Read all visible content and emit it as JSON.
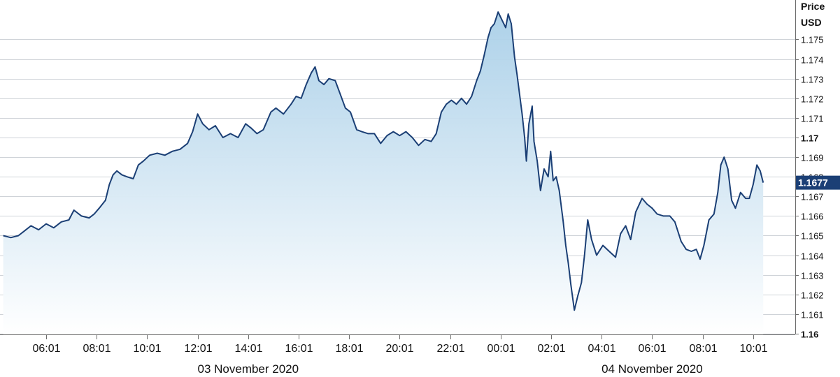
{
  "chart_data": {
    "type": "area",
    "ylabel_line1": "Price",
    "ylabel_line2": "USD",
    "ylim": [
      1.16,
      1.1765
    ],
    "yticks": [
      1.16,
      1.161,
      1.162,
      1.163,
      1.164,
      1.165,
      1.166,
      1.167,
      1.168,
      1.169,
      1.17,
      1.171,
      1.172,
      1.173,
      1.174,
      1.175
    ],
    "ytick_labels": [
      "1.16",
      "1.161",
      "1.162",
      "1.163",
      "1.164",
      "1.165",
      "1.166",
      "1.167",
      "1.168",
      "1.169",
      "1.17",
      "1.171",
      "1.172",
      "1.173",
      "1.174",
      "1.175"
    ],
    "ytick_major": [
      "1.16",
      "1.17"
    ],
    "xticks": [
      "06:01",
      "08:01",
      "10:01",
      "12:01",
      "14:01",
      "16:01",
      "18:01",
      "20:01",
      "22:01",
      "00:01",
      "02:01",
      "04:01",
      "06:01",
      "08:01",
      "10:01"
    ],
    "xtick_hours": [
      6,
      8,
      10,
      12,
      14,
      16,
      18,
      20,
      22,
      24,
      26,
      28,
      30,
      32,
      34
    ],
    "dates": [
      {
        "label": "03 November 2020",
        "center_hour": 14
      },
      {
        "label": "04 November 2020",
        "center_hour": 30
      }
    ],
    "last_price_label": "1.1677",
    "last_price": 1.1677,
    "grid": true,
    "colors": {
      "line": "#1b3f75",
      "fill_top": "#a9cfe8",
      "fill_bottom": "#ffffff",
      "grid": "#cfd3d8",
      "price_tag": "#1b3f75"
    },
    "series": [
      {
        "points": [
          [
            4.3,
            1.165
          ],
          [
            4.6,
            1.1649
          ],
          [
            4.9,
            1.165
          ],
          [
            5.1,
            1.1652
          ],
          [
            5.4,
            1.1655
          ],
          [
            5.7,
            1.1653
          ],
          [
            6.0,
            1.1656
          ],
          [
            6.3,
            1.1654
          ],
          [
            6.6,
            1.1657
          ],
          [
            6.9,
            1.1658
          ],
          [
            7.1,
            1.1663
          ],
          [
            7.4,
            1.166
          ],
          [
            7.7,
            1.1659
          ],
          [
            7.9,
            1.1661
          ],
          [
            8.1,
            1.1664
          ],
          [
            8.35,
            1.1668
          ],
          [
            8.5,
            1.1676
          ],
          [
            8.65,
            1.1681
          ],
          [
            8.8,
            1.1683
          ],
          [
            9.0,
            1.1681
          ],
          [
            9.2,
            1.168
          ],
          [
            9.45,
            1.1679
          ],
          [
            9.65,
            1.1686
          ],
          [
            9.85,
            1.1688
          ],
          [
            10.1,
            1.1691
          ],
          [
            10.4,
            1.1692
          ],
          [
            10.7,
            1.1691
          ],
          [
            11.0,
            1.1693
          ],
          [
            11.3,
            1.1694
          ],
          [
            11.6,
            1.1697
          ],
          [
            11.8,
            1.1703
          ],
          [
            12.0,
            1.1712
          ],
          [
            12.2,
            1.1707
          ],
          [
            12.45,
            1.1704
          ],
          [
            12.7,
            1.1706
          ],
          [
            13.0,
            1.17
          ],
          [
            13.3,
            1.1702
          ],
          [
            13.6,
            1.17
          ],
          [
            13.9,
            1.1707
          ],
          [
            14.1,
            1.1705
          ],
          [
            14.35,
            1.1702
          ],
          [
            14.6,
            1.1704
          ],
          [
            14.9,
            1.1713
          ],
          [
            15.1,
            1.1715
          ],
          [
            15.4,
            1.1712
          ],
          [
            15.7,
            1.1717
          ],
          [
            15.9,
            1.1721
          ],
          [
            16.1,
            1.172
          ],
          [
            16.3,
            1.1727
          ],
          [
            16.5,
            1.1733
          ],
          [
            16.65,
            1.1736
          ],
          [
            16.8,
            1.1729
          ],
          [
            17.0,
            1.1727
          ],
          [
            17.2,
            1.173
          ],
          [
            17.45,
            1.1729
          ],
          [
            17.65,
            1.1722
          ],
          [
            17.85,
            1.1715
          ],
          [
            18.05,
            1.1713
          ],
          [
            18.3,
            1.1704
          ],
          [
            18.5,
            1.1703
          ],
          [
            18.75,
            1.1702
          ],
          [
            19.0,
            1.1702
          ],
          [
            19.25,
            1.1697
          ],
          [
            19.5,
            1.1701
          ],
          [
            19.75,
            1.1703
          ],
          [
            20.0,
            1.1701
          ],
          [
            20.25,
            1.1703
          ],
          [
            20.5,
            1.17
          ],
          [
            20.75,
            1.1696
          ],
          [
            21.0,
            1.1699
          ],
          [
            21.25,
            1.1698
          ],
          [
            21.45,
            1.1702
          ],
          [
            21.65,
            1.1713
          ],
          [
            21.85,
            1.1717
          ],
          [
            22.05,
            1.1719
          ],
          [
            22.25,
            1.1717
          ],
          [
            22.45,
            1.172
          ],
          [
            22.65,
            1.1717
          ],
          [
            22.85,
            1.1721
          ],
          [
            23.05,
            1.1729
          ],
          [
            23.2,
            1.1734
          ],
          [
            23.35,
            1.1742
          ],
          [
            23.5,
            1.1751
          ],
          [
            23.62,
            1.1756
          ],
          [
            23.75,
            1.1758
          ],
          [
            23.9,
            1.1764
          ],
          [
            24.05,
            1.176
          ],
          [
            24.2,
            1.1756
          ],
          [
            24.3,
            1.1763
          ],
          [
            24.42,
            1.1758
          ],
          [
            24.55,
            1.1741
          ],
          [
            24.65,
            1.1732
          ],
          [
            24.75,
            1.1722
          ],
          [
            24.85,
            1.1712
          ],
          [
            24.95,
            1.17
          ],
          [
            25.02,
            1.1688
          ],
          [
            25.12,
            1.1707
          ],
          [
            25.25,
            1.1716
          ],
          [
            25.32,
            1.1698
          ],
          [
            25.45,
            1.1688
          ],
          [
            25.58,
            1.1673
          ],
          [
            25.72,
            1.1684
          ],
          [
            25.88,
            1.168
          ],
          [
            25.98,
            1.1693
          ],
          [
            26.08,
            1.1678
          ],
          [
            26.2,
            1.168
          ],
          [
            26.32,
            1.1673
          ],
          [
            26.48,
            1.1657
          ],
          [
            26.58,
            1.1645
          ],
          [
            26.68,
            1.1636
          ],
          [
            26.78,
            1.1625
          ],
          [
            26.92,
            1.1612
          ],
          [
            27.05,
            1.1619
          ],
          [
            27.2,
            1.1626
          ],
          [
            27.32,
            1.164
          ],
          [
            27.45,
            1.1658
          ],
          [
            27.6,
            1.1648
          ],
          [
            27.8,
            1.164
          ],
          [
            28.05,
            1.1645
          ],
          [
            28.3,
            1.1642
          ],
          [
            28.55,
            1.1639
          ],
          [
            28.75,
            1.1651
          ],
          [
            28.95,
            1.1655
          ],
          [
            29.15,
            1.1648
          ],
          [
            29.35,
            1.1662
          ],
          [
            29.6,
            1.1669
          ],
          [
            29.8,
            1.1666
          ],
          [
            30.0,
            1.1664
          ],
          [
            30.2,
            1.1661
          ],
          [
            30.45,
            1.166
          ],
          [
            30.7,
            1.166
          ],
          [
            30.9,
            1.1657
          ],
          [
            31.15,
            1.1647
          ],
          [
            31.35,
            1.1643
          ],
          [
            31.55,
            1.1642
          ],
          [
            31.75,
            1.1643
          ],
          [
            31.9,
            1.1638
          ],
          [
            32.05,
            1.1645
          ],
          [
            32.25,
            1.1658
          ],
          [
            32.45,
            1.1661
          ],
          [
            32.6,
            1.1672
          ],
          [
            32.72,
            1.1686
          ],
          [
            32.85,
            1.169
          ],
          [
            33.0,
            1.1684
          ],
          [
            33.15,
            1.1668
          ],
          [
            33.3,
            1.1664
          ],
          [
            33.5,
            1.1672
          ],
          [
            33.7,
            1.1669
          ],
          [
            33.85,
            1.1669
          ],
          [
            34.0,
            1.1676
          ],
          [
            34.15,
            1.1686
          ],
          [
            34.28,
            1.1683
          ],
          [
            34.4,
            1.1677
          ]
        ]
      }
    ]
  }
}
